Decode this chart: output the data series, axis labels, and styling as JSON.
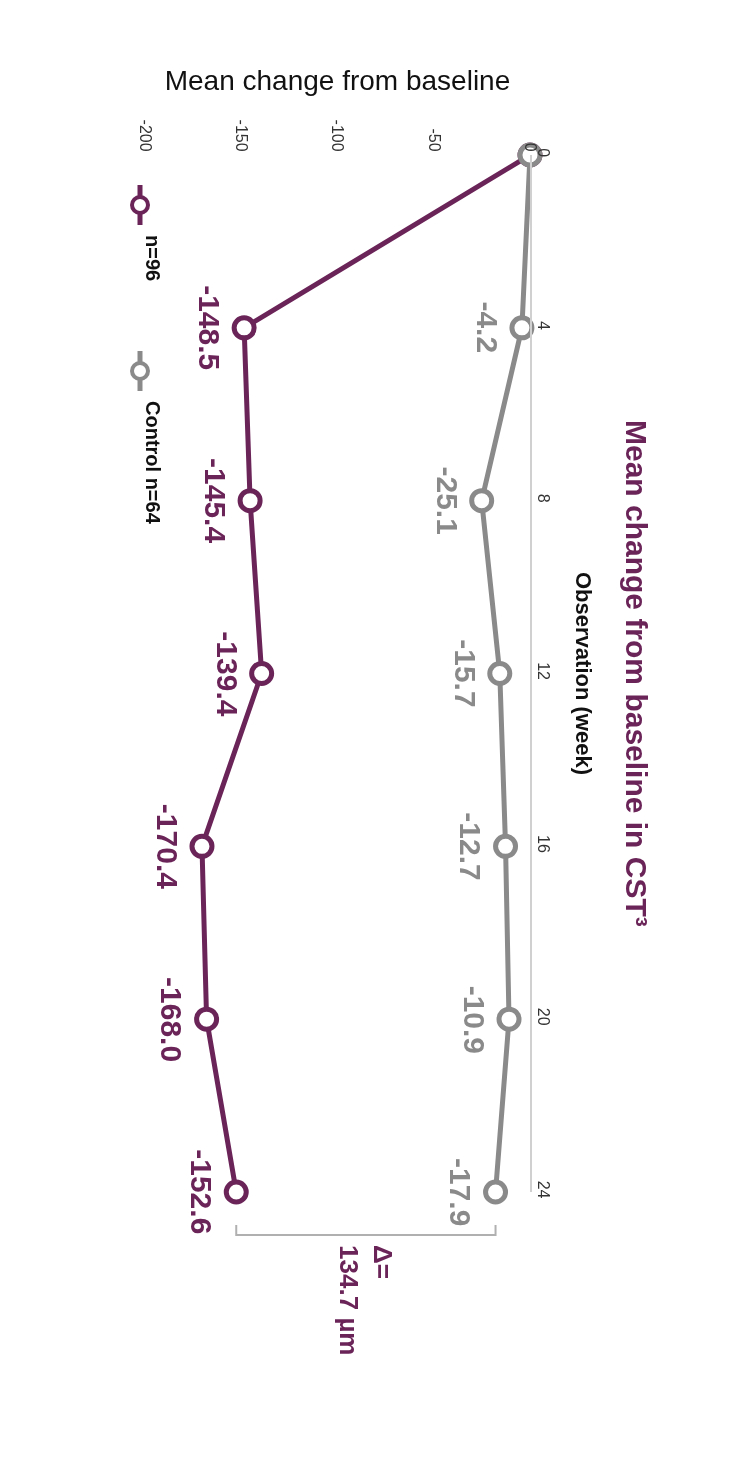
{
  "chart_data": {
    "type": "line",
    "orientation": "horizontal",
    "title": "Mean change from baseline in CST³",
    "xlabel": "Mean change from baseline",
    "ylabel": "Observation (week)",
    "x": [
      0,
      4,
      8,
      12,
      16,
      20,
      24
    ],
    "xlim": [
      -200,
      0
    ],
    "xticks": [
      -200,
      -150,
      -100,
      -50,
      0
    ],
    "ylim": [
      24,
      0
    ],
    "yticks": [
      0,
      4,
      8,
      12,
      16,
      20,
      24
    ],
    "series": [
      {
        "name": "n=96",
        "color": "#6b2458",
        "values": [
          0,
          -148.5,
          -145.4,
          -139.4,
          -170.4,
          -168.0,
          -152.6
        ],
        "value_labels": [
          null,
          "-148.5",
          "-145.4",
          "-139.4",
          "-170.4",
          "-168.0",
          "-152.6"
        ]
      },
      {
        "name": "Control n=64",
        "color": "#8a8a8a",
        "values": [
          0,
          -4.2,
          -25.1,
          -15.7,
          -12.7,
          -10.9,
          -17.9
        ],
        "value_labels": [
          null,
          "-4.2",
          "-25.1",
          "-15.7",
          "-12.7",
          "-10.9",
          "-17.9"
        ]
      }
    ],
    "annotations": [
      "Δ= 134.7 µm"
    ],
    "marker": "circle",
    "grid": false,
    "legend": "left"
  }
}
